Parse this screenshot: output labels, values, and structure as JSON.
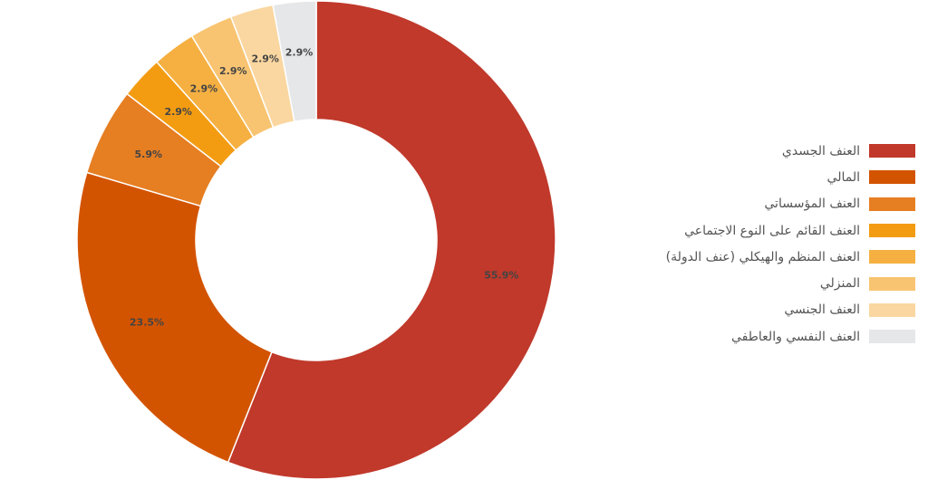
{
  "chart_data": {
    "type": "pie",
    "variant": "donut",
    "start_at": "top",
    "direction": "clockwise",
    "legend_position": "right",
    "slices": [
      {
        "label": "العنف الجسدي",
        "value": 55.9,
        "display": "55.9%",
        "color": "#c0392b"
      },
      {
        "label": "المالي",
        "value": 23.5,
        "display": "23.5%",
        "color": "#d35400"
      },
      {
        "label": "العنف المؤسساتي",
        "value": 5.9,
        "display": "5.9%",
        "color": "#e67e22"
      },
      {
        "label": "العنف القائم على النوع الاجتماعي",
        "value": 2.9,
        "display": "2.9%",
        "color": "#f39c12"
      },
      {
        "label": "العنف المنظم والهيكلي (عنف الدولة)",
        "value": 2.9,
        "display": "2.9%",
        "color": "#f5b041"
      },
      {
        "label": "المنزلي",
        "value": 2.9,
        "display": "2.9%",
        "color": "#f8c471"
      },
      {
        "label": "العنف الجنسي",
        "value": 2.9,
        "display": "2.9%",
        "color": "#fad7a0"
      },
      {
        "label": "العنف النفسي والعاطفي",
        "value": 2.9,
        "display": "2.9%",
        "color": "#e5e7e9"
      }
    ]
  }
}
